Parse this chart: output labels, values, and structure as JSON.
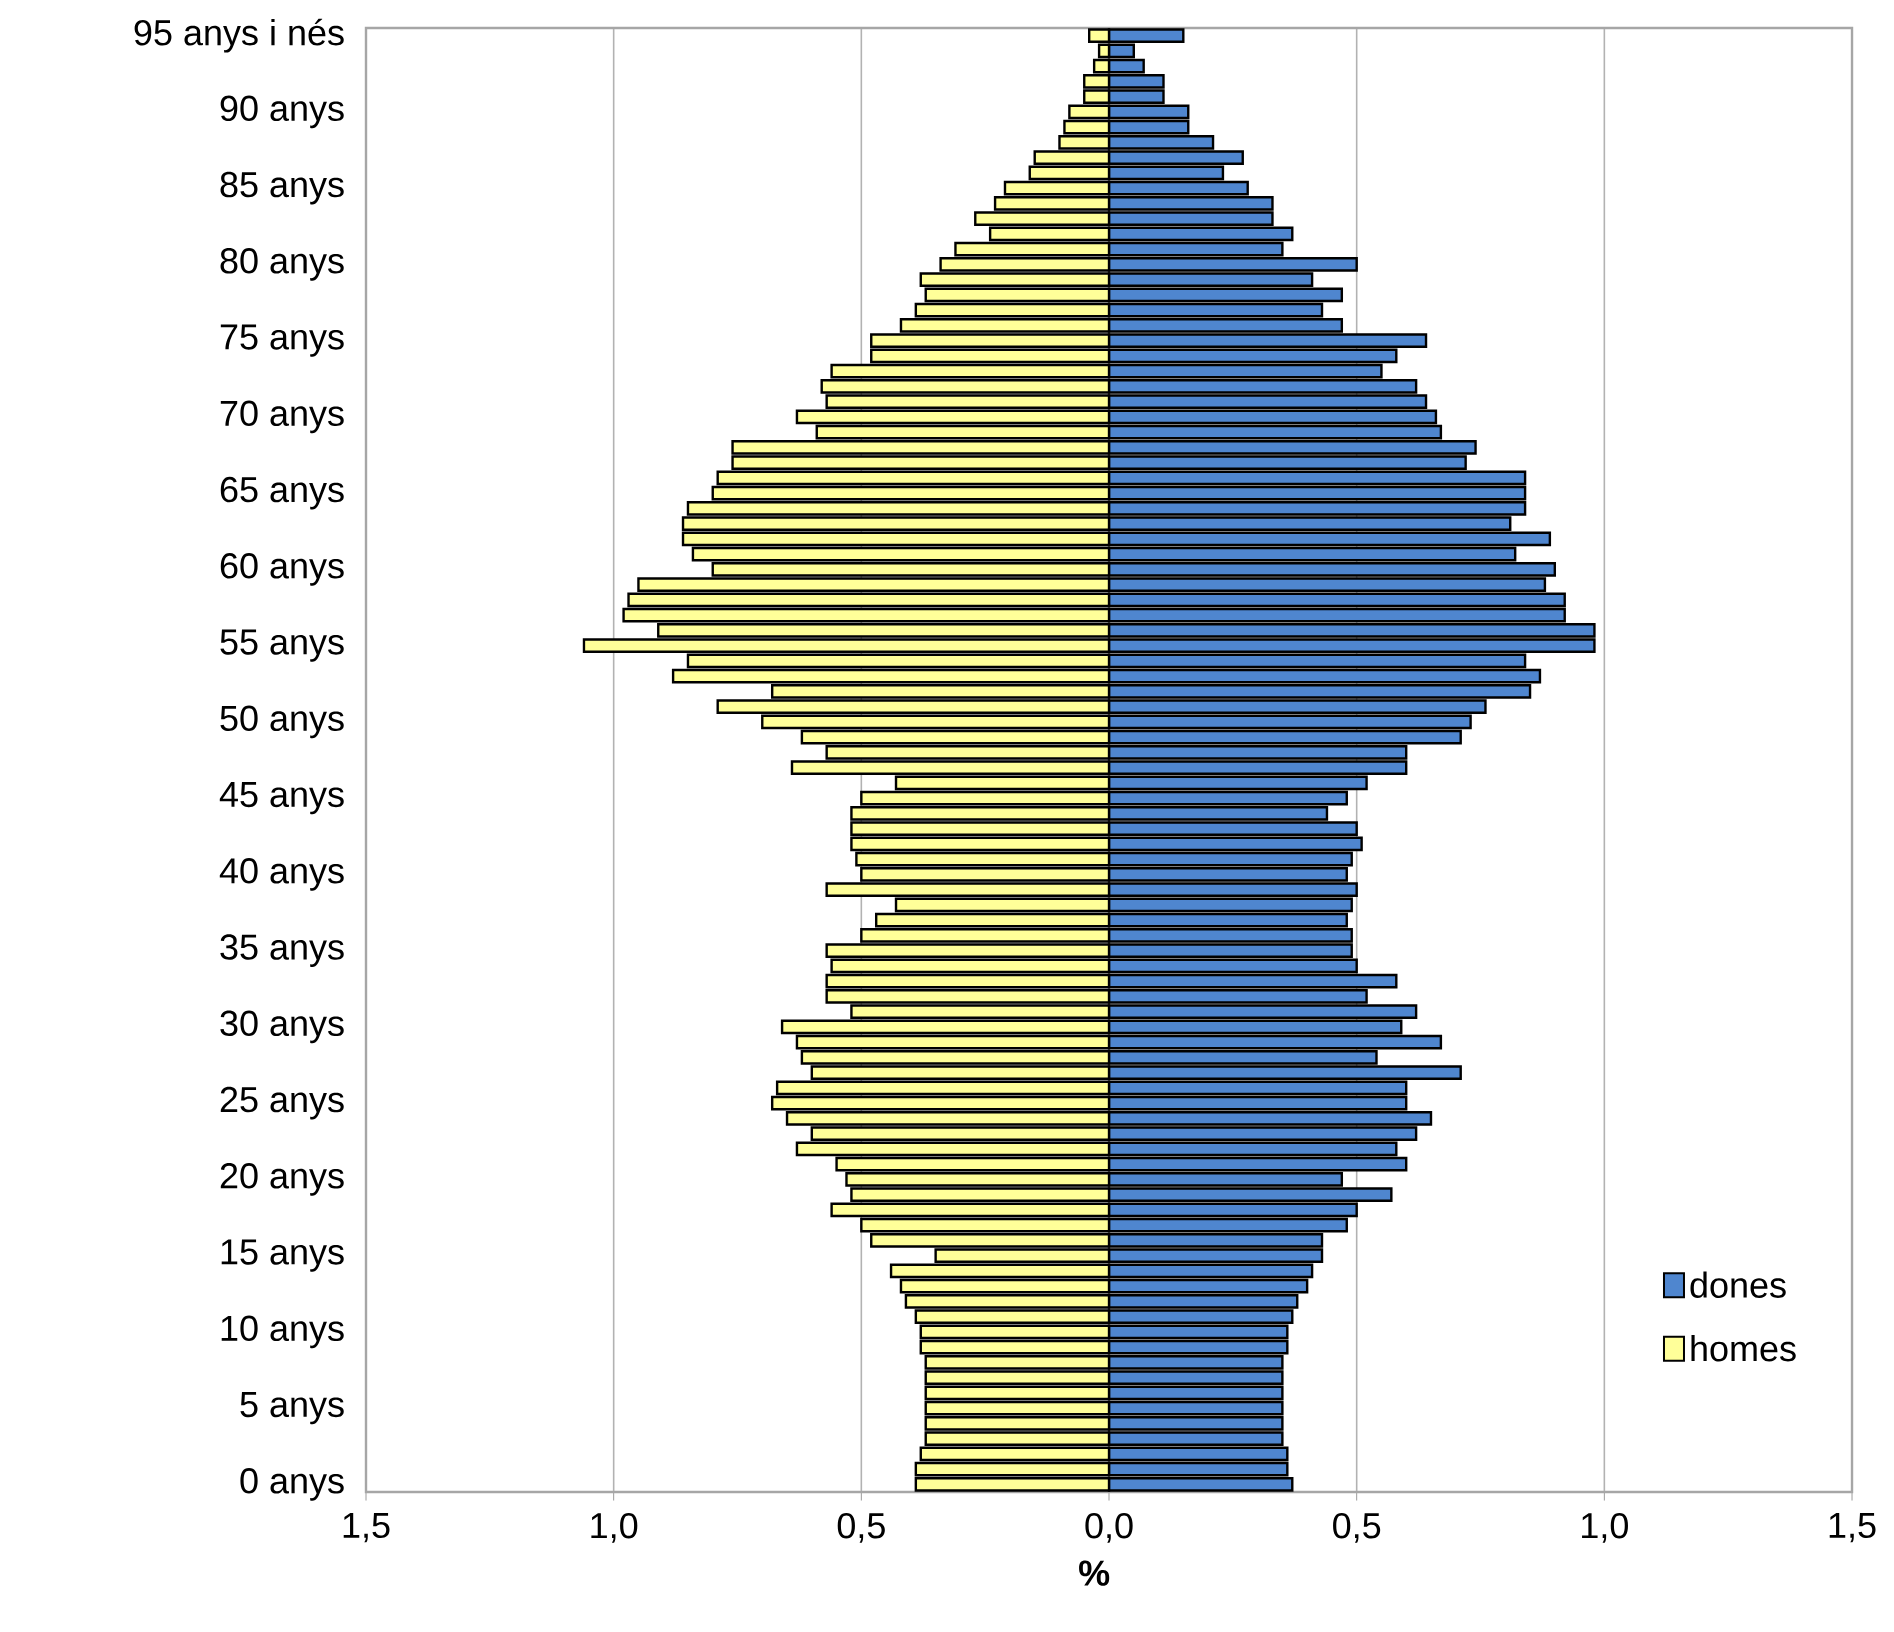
{
  "chart_data": {
    "type": "bar",
    "orientation": "horizontal",
    "xlabel": "%",
    "categories": [
      "95 anys i nés",
      null,
      null,
      null,
      null,
      "90 anys",
      null,
      null,
      null,
      null,
      "85 anys",
      null,
      null,
      null,
      null,
      "80 anys",
      null,
      null,
      null,
      null,
      "75 anys",
      null,
      null,
      null,
      null,
      "70 anys",
      null,
      null,
      null,
      null,
      "65 anys",
      null,
      null,
      null,
      null,
      "60 anys",
      null,
      null,
      null,
      null,
      "55 anys",
      null,
      null,
      null,
      null,
      "50 anys",
      null,
      null,
      null,
      null,
      "45 anys",
      null,
      null,
      null,
      null,
      "40 anys",
      null,
      null,
      null,
      null,
      "35 anys",
      null,
      null,
      null,
      null,
      "30 anys",
      null,
      null,
      null,
      null,
      "25 anys",
      null,
      null,
      null,
      null,
      "20 anys",
      null,
      null,
      null,
      null,
      "15 anys",
      null,
      null,
      null,
      null,
      "10 anys",
      null,
      null,
      null,
      null,
      "5 anys",
      null,
      null,
      null,
      null,
      "0 anys"
    ],
    "series": [
      {
        "name": "dones",
        "color": "#4f86cf",
        "values": [
          0.15,
          0.05,
          0.07,
          0.11,
          0.11,
          0.16,
          0.16,
          0.21,
          0.27,
          0.23,
          0.28,
          0.33,
          0.33,
          0.37,
          0.35,
          0.5,
          0.41,
          0.47,
          0.43,
          0.47,
          0.64,
          0.58,
          0.55,
          0.62,
          0.64,
          0.66,
          0.67,
          0.74,
          0.72,
          0.84,
          0.84,
          0.84,
          0.81,
          0.89,
          0.82,
          0.9,
          0.88,
          0.92,
          0.92,
          0.98,
          0.98,
          0.84,
          0.87,
          0.85,
          0.76,
          0.73,
          0.71,
          0.6,
          0.6,
          0.52,
          0.48,
          0.44,
          0.5,
          0.51,
          0.49,
          0.48,
          0.5,
          0.49,
          0.48,
          0.49,
          0.49,
          0.5,
          0.58,
          0.52,
          0.62,
          0.59,
          0.67,
          0.54,
          0.71,
          0.6,
          0.6,
          0.65,
          0.62,
          0.58,
          0.6,
          0.47,
          0.57,
          0.5,
          0.48,
          0.43,
          0.43,
          0.41,
          0.4,
          0.38,
          0.37,
          0.36,
          0.36,
          0.35,
          0.35,
          0.35,
          0.35,
          0.35,
          0.35,
          0.36,
          0.36,
          0.37
        ]
      },
      {
        "name": "homes",
        "color": "#ffff99",
        "values": [
          -0.04,
          -0.02,
          -0.03,
          -0.05,
          -0.05,
          -0.08,
          -0.09,
          -0.1,
          -0.15,
          -0.16,
          -0.21,
          -0.23,
          -0.27,
          -0.24,
          -0.31,
          -0.34,
          -0.38,
          -0.37,
          -0.39,
          -0.42,
          -0.48,
          -0.48,
          -0.56,
          -0.58,
          -0.57,
          -0.63,
          -0.59,
          -0.76,
          -0.76,
          -0.79,
          -0.8,
          -0.85,
          -0.86,
          -0.86,
          -0.84,
          -0.8,
          -0.95,
          -0.97,
          -0.98,
          -0.91,
          -1.06,
          -0.85,
          -0.88,
          -0.68,
          -0.79,
          -0.7,
          -0.62,
          -0.57,
          -0.64,
          -0.43,
          -0.5,
          -0.52,
          -0.52,
          -0.52,
          -0.51,
          -0.5,
          -0.57,
          -0.43,
          -0.47,
          -0.5,
          -0.57,
          -0.56,
          -0.57,
          -0.57,
          -0.52,
          -0.66,
          -0.63,
          -0.62,
          -0.6,
          -0.67,
          -0.68,
          -0.65,
          -0.6,
          -0.63,
          -0.55,
          -0.53,
          -0.52,
          -0.56,
          -0.5,
          -0.48,
          -0.35,
          -0.44,
          -0.42,
          -0.41,
          -0.39,
          -0.38,
          -0.38,
          -0.37,
          -0.37,
          -0.37,
          -0.37,
          -0.37,
          -0.37,
          -0.38,
          -0.39,
          -0.39
        ]
      }
    ],
    "xlim": [
      -1.5,
      1.5
    ],
    "xticks": [
      {
        "value": -1.5,
        "label": "1,5"
      },
      {
        "value": -1.0,
        "label": "1,0"
      },
      {
        "value": -0.5,
        "label": "0,5"
      },
      {
        "value": 0,
        "label": "0,0"
      },
      {
        "value": 0.5,
        "label": "0,5"
      },
      {
        "value": 1.0,
        "label": "1,0"
      },
      {
        "value": 1.5,
        "label": "1,5"
      }
    ],
    "grid": "x",
    "legend": "bottom right",
    "stacked": true
  }
}
